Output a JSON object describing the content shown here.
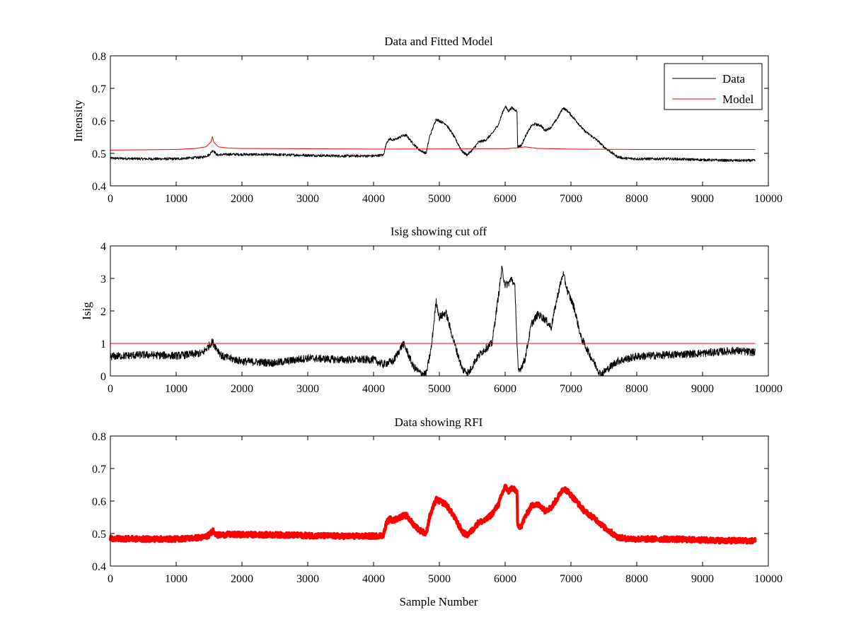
{
  "figure": {
    "background": "#ffffff"
  },
  "chart_data": [
    {
      "type": "line",
      "title": "Data and Fitted Model",
      "xlabel": "",
      "ylabel": "Intensity",
      "xlim": [
        0,
        10000
      ],
      "ylim": [
        0.4,
        0.8
      ],
      "xticks": [
        0,
        1000,
        2000,
        3000,
        4000,
        5000,
        6000,
        7000,
        8000,
        9000,
        10000
      ],
      "yticks": [
        0.4,
        0.5,
        0.6,
        0.7,
        0.8
      ],
      "xtick_labels": [
        "0",
        "1000",
        "2000",
        "3000",
        "4000",
        "5000",
        "6000",
        "7000",
        "8000",
        "9000",
        "10000"
      ],
      "ytick_labels": [
        "0.4",
        "0.5",
        "0.6",
        "0.7",
        "0.8"
      ],
      "legend": {
        "position": "top-right",
        "entries": [
          "Data",
          "Model"
        ]
      },
      "series": [
        {
          "name": "Data",
          "color": "#000000",
          "noise": 0.004,
          "x": [
            0,
            500,
            1000,
            1400,
            1500,
            1560,
            1620,
            1800,
            2500,
            3000,
            3500,
            4000,
            4150,
            4200,
            4250,
            4300,
            4450,
            4500,
            4600,
            4700,
            4800,
            4850,
            4950,
            5000,
            5100,
            5200,
            5350,
            5420,
            5500,
            5600,
            5700,
            5800,
            5900,
            5950,
            6000,
            6050,
            6100,
            6180,
            6190,
            6250,
            6300,
            6400,
            6450,
            6550,
            6600,
            6700,
            6800,
            6880,
            6950,
            7100,
            7200,
            7300,
            7400,
            7500,
            7600,
            7700,
            7800,
            8000,
            8500,
            9000,
            9400,
            9800
          ],
          "y": [
            0.485,
            0.483,
            0.483,
            0.488,
            0.495,
            0.51,
            0.495,
            0.497,
            0.496,
            0.494,
            0.492,
            0.492,
            0.495,
            0.535,
            0.545,
            0.54,
            0.555,
            0.555,
            0.53,
            0.51,
            0.5,
            0.55,
            0.605,
            0.6,
            0.59,
            0.56,
            0.505,
            0.495,
            0.51,
            0.535,
            0.54,
            0.56,
            0.59,
            0.62,
            0.645,
            0.63,
            0.64,
            0.63,
            0.52,
            0.525,
            0.55,
            0.585,
            0.59,
            0.585,
            0.57,
            0.58,
            0.61,
            0.64,
            0.63,
            0.595,
            0.57,
            0.555,
            0.54,
            0.52,
            0.505,
            0.49,
            0.485,
            0.483,
            0.483,
            0.48,
            0.478,
            0.478
          ]
        },
        {
          "name": "Model",
          "color": "#ff0000",
          "noise": 0,
          "x": [
            0,
            1000,
            1300,
            1450,
            1530,
            1550,
            1570,
            1640,
            1800,
            2000,
            4000,
            6000,
            6200,
            6300,
            6500,
            7000,
            8000,
            9800
          ],
          "y": [
            0.51,
            0.512,
            0.515,
            0.52,
            0.535,
            0.552,
            0.535,
            0.52,
            0.516,
            0.515,
            0.513,
            0.514,
            0.517,
            0.52,
            0.515,
            0.513,
            0.512,
            0.512
          ]
        }
      ]
    },
    {
      "type": "line",
      "title": "Isig showing cut off",
      "xlabel": "",
      "ylabel": "Isig",
      "xlim": [
        0,
        10000
      ],
      "ylim": [
        0,
        4
      ],
      "xticks": [
        0,
        1000,
        2000,
        3000,
        4000,
        5000,
        6000,
        7000,
        8000,
        9000,
        10000
      ],
      "yticks": [
        0,
        1,
        2,
        3,
        4
      ],
      "xtick_labels": [
        "0",
        "1000",
        "2000",
        "3000",
        "4000",
        "5000",
        "6000",
        "7000",
        "8000",
        "9000",
        "10000"
      ],
      "ytick_labels": [
        "0",
        "1",
        "2",
        "3",
        "4"
      ],
      "series": [
        {
          "color": "#000000",
          "noise": 0.12,
          "x": [
            0,
            500,
            1000,
            1400,
            1550,
            1700,
            2000,
            2500,
            3000,
            3500,
            4000,
            4150,
            4200,
            4300,
            4450,
            4500,
            4600,
            4700,
            4800,
            4880,
            4950,
            5000,
            5100,
            5200,
            5350,
            5450,
            5550,
            5650,
            5800,
            5900,
            5950,
            6000,
            6050,
            6100,
            6150,
            6180,
            6200,
            6300,
            6400,
            6500,
            6600,
            6700,
            6800,
            6880,
            6950,
            7050,
            7150,
            7300,
            7450,
            7550,
            7700,
            8000,
            8500,
            9000,
            9500,
            9800
          ],
          "y": [
            0.6,
            0.65,
            0.62,
            0.7,
            1.05,
            0.6,
            0.45,
            0.4,
            0.55,
            0.5,
            0.5,
            0.35,
            0.4,
            0.45,
            1.0,
            0.8,
            0.3,
            0.1,
            0.05,
            0.9,
            2.3,
            1.8,
            1.95,
            1.2,
            0.2,
            0.1,
            0.5,
            0.75,
            1.0,
            2.5,
            3.3,
            2.8,
            2.85,
            3.0,
            2.7,
            1.0,
            0.1,
            0.5,
            1.6,
            1.9,
            1.75,
            1.5,
            2.5,
            3.15,
            2.6,
            2.1,
            1.2,
            0.6,
            0.05,
            0.2,
            0.45,
            0.6,
            0.65,
            0.7,
            0.78,
            0.72
          ]
        },
        {
          "color": "#ff0000",
          "noise": 0,
          "x": [
            0,
            9800
          ],
          "y": [
            1,
            1
          ]
        }
      ]
    },
    {
      "type": "line",
      "title": "Data showing RFI",
      "xlabel": "Sample Number",
      "ylabel": "",
      "xlim": [
        0,
        10000
      ],
      "ylim": [
        0.4,
        0.8
      ],
      "xticks": [
        0,
        1000,
        2000,
        3000,
        4000,
        5000,
        6000,
        7000,
        8000,
        9000,
        10000
      ],
      "yticks": [
        0.4,
        0.5,
        0.6,
        0.7,
        0.8
      ],
      "xtick_labels": [
        "0",
        "1000",
        "2000",
        "3000",
        "4000",
        "5000",
        "6000",
        "7000",
        "8000",
        "9000",
        "10000"
      ],
      "ytick_labels": [
        "0.4",
        "0.5",
        "0.6",
        "0.7",
        "0.8"
      ],
      "series": [
        {
          "color": "#ff0000",
          "noise": 0.008,
          "thick": true,
          "x": [
            0,
            500,
            1000,
            1400,
            1500,
            1560,
            1620,
            1800,
            2500,
            3000,
            3500,
            4000,
            4150,
            4200,
            4250,
            4300,
            4450,
            4500,
            4600,
            4700,
            4800,
            4850,
            4950,
            5000,
            5100,
            5200,
            5350,
            5420,
            5500,
            5600,
            5700,
            5800,
            5900,
            5950,
            6000,
            6050,
            6100,
            6180,
            6190,
            6250,
            6300,
            6400,
            6450,
            6550,
            6600,
            6700,
            6800,
            6880,
            6950,
            7100,
            7200,
            7300,
            7400,
            7500,
            7600,
            7700,
            7800,
            8000,
            8500,
            9000,
            9400,
            9800
          ],
          "y": [
            0.485,
            0.483,
            0.483,
            0.488,
            0.495,
            0.51,
            0.495,
            0.497,
            0.496,
            0.494,
            0.492,
            0.492,
            0.495,
            0.535,
            0.545,
            0.54,
            0.555,
            0.555,
            0.53,
            0.51,
            0.5,
            0.55,
            0.605,
            0.6,
            0.59,
            0.56,
            0.505,
            0.495,
            0.51,
            0.535,
            0.54,
            0.56,
            0.59,
            0.62,
            0.645,
            0.63,
            0.64,
            0.63,
            0.52,
            0.525,
            0.55,
            0.585,
            0.59,
            0.585,
            0.57,
            0.58,
            0.61,
            0.64,
            0.63,
            0.595,
            0.57,
            0.555,
            0.54,
            0.52,
            0.505,
            0.49,
            0.485,
            0.483,
            0.483,
            0.48,
            0.478,
            0.478
          ]
        }
      ]
    }
  ]
}
